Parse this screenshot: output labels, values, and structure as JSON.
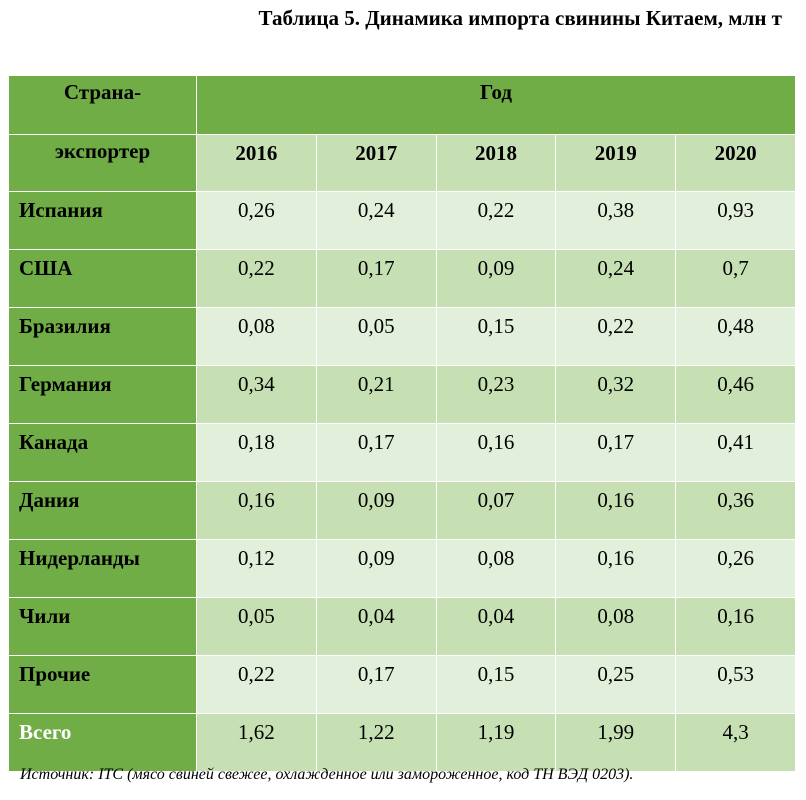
{
  "title": "Таблица 5. Динамика импорта свинины Китаем, млн т",
  "table": {
    "stub_header_line1": "Страна-",
    "stub_header_line2": "экспортер",
    "group_header": "Год",
    "years": [
      "2016",
      "2017",
      "2018",
      "2019",
      "2020"
    ],
    "rows": [
      {
        "country": "Испания",
        "values": [
          "0,26",
          "0,24",
          "0,22",
          "0,38",
          "0,93"
        ]
      },
      {
        "country": "США",
        "values": [
          "0,22",
          "0,17",
          "0,09",
          "0,24",
          "0,7"
        ]
      },
      {
        "country": "Бразилия",
        "values": [
          "0,08",
          "0,05",
          "0,15",
          "0,22",
          "0,48"
        ]
      },
      {
        "country": "Германия",
        "values": [
          "0,34",
          "0,21",
          "0,23",
          "0,32",
          "0,46"
        ]
      },
      {
        "country": "Канада",
        "values": [
          "0,18",
          "0,17",
          "0,16",
          "0,17",
          "0,41"
        ]
      },
      {
        "country": "Дания",
        "values": [
          "0,16",
          "0,09",
          "0,07",
          "0,16",
          "0,36"
        ]
      },
      {
        "country": "Нидерланды",
        "values": [
          "0,12",
          "0,09",
          "0,08",
          "0,16",
          "0,26"
        ]
      },
      {
        "country": "Чили",
        "values": [
          "0,05",
          "0,04",
          "0,04",
          "0,08",
          "0,16"
        ]
      },
      {
        "country": "Прочие",
        "values": [
          "0,22",
          "0,17",
          "0,15",
          "0,25",
          "0,53"
        ]
      }
    ],
    "total": {
      "country": "Всего",
      "values": [
        "1,62",
        "1,22",
        "1,19",
        "1,99",
        "4,3"
      ]
    }
  },
  "source_label": "Источник",
  "source_text": ": ITC (мясо свиней свежее, охлажденное или замороженное, код ТН ВЭД 0203).",
  "colors": {
    "header_green": "#70ad47",
    "cell_light": "#e2efda",
    "cell_dark": "#c6e0b4",
    "total_text": "#ffffff"
  }
}
